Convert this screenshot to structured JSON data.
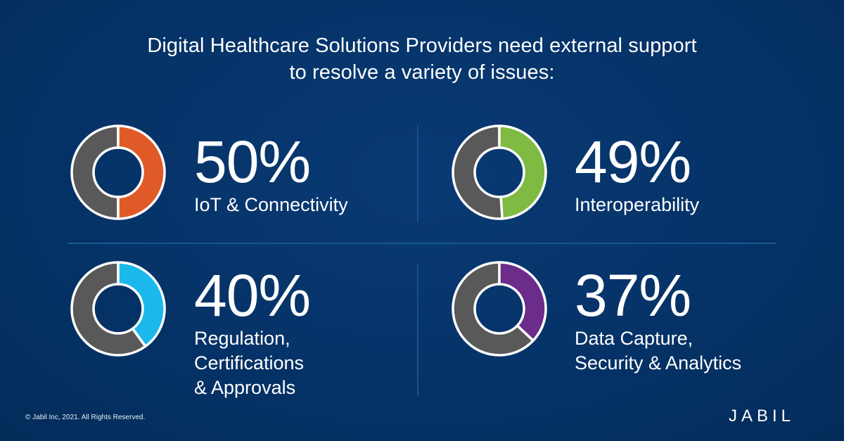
{
  "header": {
    "title_line1": "Digital Healthcare Solutions Providers need external support",
    "title_line2": "to resolve a variety of issues:"
  },
  "stats": [
    {
      "percent": "50%",
      "label_lines": [
        "IoT & Connectivity"
      ],
      "color": "#e05a27"
    },
    {
      "percent": "49%",
      "label_lines": [
        "Interoperability"
      ],
      "color": "#7fba42"
    },
    {
      "percent": "40%",
      "label_lines": [
        "Regulation,",
        "Certifications",
        "& Approvals"
      ],
      "color": "#1bb8ec"
    },
    {
      "percent": "37%",
      "label_lines": [
        "Data Capture,",
        "Security & Analytics"
      ],
      "color": "#6b2c8a"
    }
  ],
  "chart_data": {
    "type": "pie",
    "subtype": "donut",
    "title": "Digital Healthcare Solutions Providers need external support to resolve a variety of issues:",
    "categories": [
      "IoT & Connectivity",
      "Interoperability",
      "Regulation, Certifications & Approvals",
      "Data Capture, Security & Analytics"
    ],
    "values": [
      50,
      49,
      40,
      37
    ],
    "unit": "%",
    "colors": [
      "#e05a27",
      "#7fba42",
      "#1bb8ec",
      "#6b2c8a"
    ],
    "remainder_color": "#595959",
    "layout": "2x2 grid, one donut per category"
  },
  "footer": {
    "copyright": "© Jabil Inc, 2021. All Rights Reserved.",
    "logo_text": "JABIL"
  },
  "colors": {
    "background": "#06346a",
    "remainder": "#595959",
    "ring_stroke": "#ffffff",
    "divider": "#1a5f9a"
  }
}
